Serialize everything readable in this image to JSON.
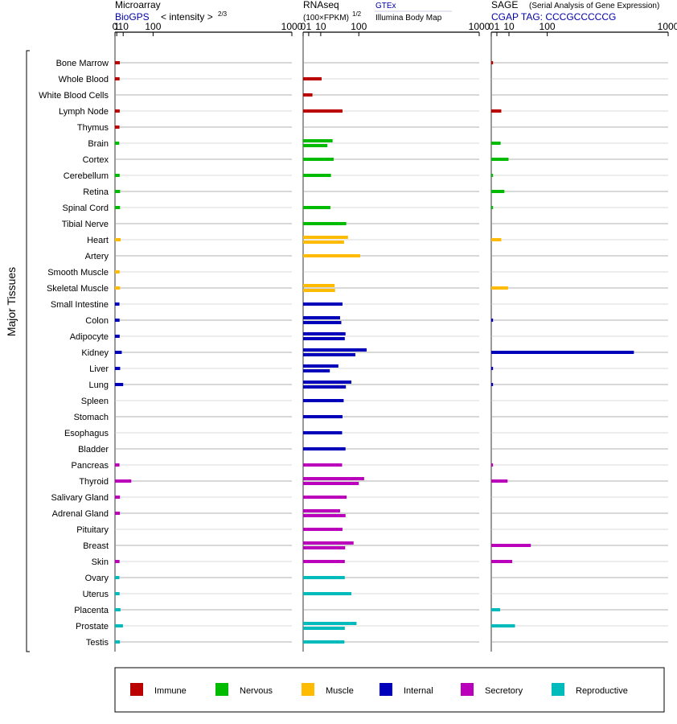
{
  "header": {
    "microarray": {
      "title": "Microarray",
      "source": "BioGPS",
      "unit": "< intensity >",
      "exponent": "2/3"
    },
    "rnaseq": {
      "title": "RNAseq",
      "unit": "(100×FPKM)",
      "exponent": "1/2",
      "source1": "GTEx",
      "source2": "Illumina Body Map"
    },
    "sage": {
      "title": "SAGE",
      "subtitle": "(Serial Analysis of Gene Expression)",
      "tag": "CGAP TAG: CCCGCCCCCG"
    }
  },
  "axis": {
    "ticks": [
      0,
      1,
      10,
      100,
      1000
    ],
    "tick_labels": [
      "0",
      "1",
      "10",
      "100",
      "1000"
    ],
    "scale": "power",
    "range": [
      0,
      1000
    ]
  },
  "y_axis_label": "Major Tissues",
  "colors": {
    "Immune": "#bb0000",
    "Nervous": "#00bb00",
    "Muscle": "#ffbb00",
    "Internal": "#0000bb",
    "Secretory": "#bb00bb",
    "Reproductive": "#00bbbb"
  },
  "legend": [
    "Immune",
    "Nervous",
    "Muscle",
    "Internal",
    "Secretory",
    "Reproductive"
  ],
  "chart_data": {
    "type": "bar",
    "categories": [
      "Bone Marrow",
      "Whole Blood",
      "White Blood Cells",
      "Lymph Node",
      "Thymus",
      "Brain",
      "Cortex",
      "Cerebellum",
      "Retina",
      "Spinal Cord",
      "Tibial Nerve",
      "Heart",
      "Artery",
      "Smooth Muscle",
      "Skeletal Muscle",
      "Small Intestine",
      "Colon",
      "Adipocyte",
      "Kidney",
      "Liver",
      "Lung",
      "Spleen",
      "Stomach",
      "Esophagus",
      "Bladder",
      "Pancreas",
      "Thyroid",
      "Salivary Gland",
      "Adrenal Gland",
      "Pituitary",
      "Breast",
      "Skin",
      "Ovary",
      "Uterus",
      "Placenta",
      "Prostate",
      "Testis"
    ],
    "groups": [
      "Immune",
      "Immune",
      "Immune",
      "Immune",
      "Immune",
      "Nervous",
      "Nervous",
      "Nervous",
      "Nervous",
      "Nervous",
      "Nervous",
      "Muscle",
      "Muscle",
      "Muscle",
      "Muscle",
      "Internal",
      "Internal",
      "Internal",
      "Internal",
      "Internal",
      "Internal",
      "Internal",
      "Internal",
      "Internal",
      "Internal",
      "Secretory",
      "Secretory",
      "Secretory",
      "Secretory",
      "Secretory",
      "Secretory",
      "Secretory",
      "Reproductive",
      "Reproductive",
      "Reproductive",
      "Reproductive",
      "Reproductive"
    ],
    "microarray": [
      4.5,
      4.2,
      null,
      4.4,
      4.0,
      3.7,
      null,
      4.3,
      4.9,
      4.8,
      null,
      5.8,
      null,
      4.2,
      4.8,
      4.0,
      4.2,
      4.3,
      7.5,
      5.0,
      10.0,
      null,
      null,
      null,
      null,
      4.0,
      28,
      4.7,
      4.6,
      null,
      null,
      4.1,
      3.9,
      4.2,
      5.5,
      9.5,
      4.6
    ],
    "rnaseq_gtex": [
      null,
      11,
      2.8,
      null,
      null,
      28,
      null,
      25,
      null,
      24,
      60,
      65,
      105,
      null,
      32,
      null,
      44,
      58,
      130,
      40,
      75,
      null,
      null,
      null,
      null,
      null,
      120,
      null,
      44,
      null,
      82,
      null,
      null,
      null,
      null,
      92,
      null
    ],
    "rnaseq_ibm": [
      null,
      null,
      null,
      50,
      null,
      19,
      30,
      null,
      null,
      null,
      null,
      54,
      null,
      null,
      33,
      50,
      47,
      56,
      88,
      23,
      59,
      53,
      50,
      49,
      58,
      49,
      100,
      61,
      58,
      50,
      57,
      56,
      56,
      75,
      null,
      56,
      55
    ],
    "sage": [
      0.1,
      null,
      null,
      3.2,
      null,
      2.8,
      9.5,
      0.1,
      5.5,
      0.1,
      null,
      3.2,
      null,
      null,
      9.0,
      null,
      0.1,
      null,
      650,
      0.1,
      0.1,
      null,
      null,
      null,
      null,
      0.1,
      8.5,
      null,
      null,
      null,
      50,
      14,
      null,
      null,
      2.5,
      18,
      null
    ]
  }
}
